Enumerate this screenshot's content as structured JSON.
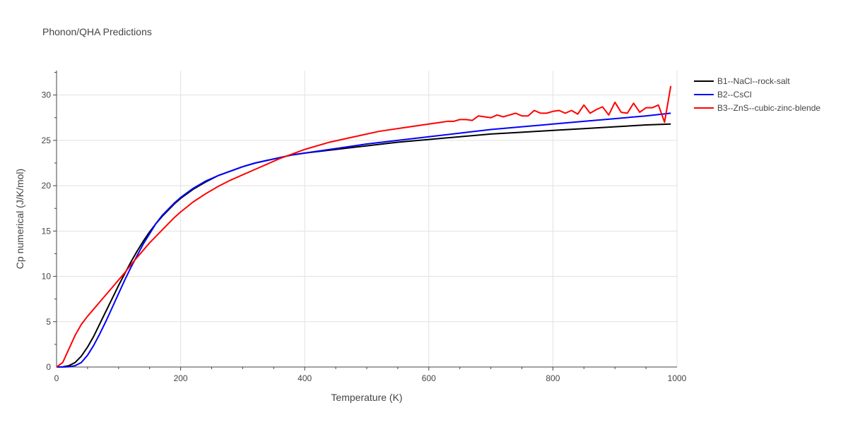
{
  "chart_data": {
    "type": "line",
    "title": "Phonon/QHA Predictions",
    "xlabel": "Temperature (K)",
    "ylabel": "Cp numerical (J/K/mol)",
    "xlim": [
      0,
      1000
    ],
    "ylim": [
      0,
      32.7
    ],
    "xticks": [
      0,
      200,
      400,
      600,
      800,
      1000
    ],
    "yticks": [
      0,
      5,
      10,
      15,
      20,
      25,
      30
    ],
    "grid": true,
    "legend_position": "top-right-outside",
    "series": [
      {
        "name": "B1--NaCl--rock-salt",
        "color": "#000000",
        "x": [
          0,
          10,
          20,
          30,
          40,
          50,
          60,
          70,
          80,
          90,
          100,
          110,
          120,
          130,
          140,
          150,
          160,
          170,
          180,
          190,
          200,
          220,
          240,
          260,
          280,
          300,
          320,
          340,
          360,
          380,
          400,
          450,
          500,
          550,
          600,
          650,
          700,
          750,
          800,
          850,
          900,
          950,
          990
        ],
        "y": [
          0,
          0.02,
          0.15,
          0.5,
          1.2,
          2.2,
          3.4,
          4.8,
          6.2,
          7.6,
          9.0,
          10.3,
          11.6,
          12.8,
          13.9,
          14.9,
          15.8,
          16.6,
          17.3,
          18.0,
          18.6,
          19.6,
          20.4,
          21.1,
          21.6,
          22.1,
          22.5,
          22.8,
          23.1,
          23.4,
          23.6,
          24.0,
          24.4,
          24.8,
          25.1,
          25.4,
          25.7,
          25.9,
          26.1,
          26.3,
          26.5,
          26.7,
          26.8
        ]
      },
      {
        "name": "B2--CsCl",
        "color": "#0000ff",
        "x": [
          0,
          10,
          20,
          30,
          40,
          50,
          60,
          70,
          80,
          90,
          100,
          110,
          120,
          130,
          140,
          150,
          160,
          170,
          180,
          190,
          200,
          220,
          240,
          260,
          280,
          300,
          320,
          340,
          360,
          380,
          400,
          450,
          500,
          550,
          600,
          650,
          700,
          750,
          800,
          850,
          900,
          950,
          990
        ],
        "y": [
          0,
          0,
          0.03,
          0.15,
          0.5,
          1.3,
          2.4,
          3.7,
          5.1,
          6.6,
          8.1,
          9.6,
          11.0,
          12.3,
          13.6,
          14.7,
          15.8,
          16.7,
          17.4,
          18.1,
          18.7,
          19.7,
          20.5,
          21.1,
          21.6,
          22.1,
          22.5,
          22.8,
          23.1,
          23.4,
          23.6,
          24.1,
          24.6,
          25.0,
          25.4,
          25.8,
          26.2,
          26.5,
          26.8,
          27.1,
          27.4,
          27.7,
          28.0
        ]
      },
      {
        "name": "B3--ZnS--cubic-zinc-blende",
        "color": "#ff0000",
        "x": [
          0,
          10,
          20,
          30,
          40,
          50,
          60,
          70,
          80,
          90,
          100,
          110,
          120,
          130,
          140,
          150,
          160,
          170,
          180,
          190,
          200,
          220,
          240,
          260,
          280,
          300,
          320,
          340,
          360,
          380,
          400,
          440,
          480,
          520,
          560,
          600,
          610,
          620,
          630,
          640,
          650,
          660,
          670,
          680,
          690,
          700,
          710,
          720,
          730,
          740,
          750,
          760,
          770,
          780,
          790,
          800,
          810,
          820,
          830,
          840,
          850,
          860,
          870,
          880,
          890,
          900,
          910,
          920,
          930,
          940,
          950,
          960,
          970,
          980,
          990
        ],
        "y": [
          0,
          0.5,
          2.0,
          3.5,
          4.7,
          5.6,
          6.4,
          7.2,
          8.0,
          8.8,
          9.6,
          10.4,
          11.3,
          12.1,
          12.9,
          13.7,
          14.4,
          15.1,
          15.8,
          16.5,
          17.1,
          18.2,
          19.1,
          19.9,
          20.6,
          21.2,
          21.8,
          22.4,
          23.0,
          23.5,
          24.0,
          24.8,
          25.4,
          26.0,
          26.4,
          26.8,
          26.9,
          27.0,
          27.1,
          27.1,
          27.3,
          27.3,
          27.2,
          27.7,
          27.6,
          27.5,
          27.8,
          27.6,
          27.8,
          28.0,
          27.7,
          27.7,
          28.3,
          28.0,
          28.0,
          28.2,
          28.3,
          28.0,
          28.3,
          27.9,
          28.9,
          28.0,
          28.4,
          28.7,
          27.8,
          29.2,
          28.1,
          28.0,
          29.1,
          28.1,
          28.6,
          28.6,
          28.9,
          27.0,
          31.0
        ]
      }
    ]
  }
}
